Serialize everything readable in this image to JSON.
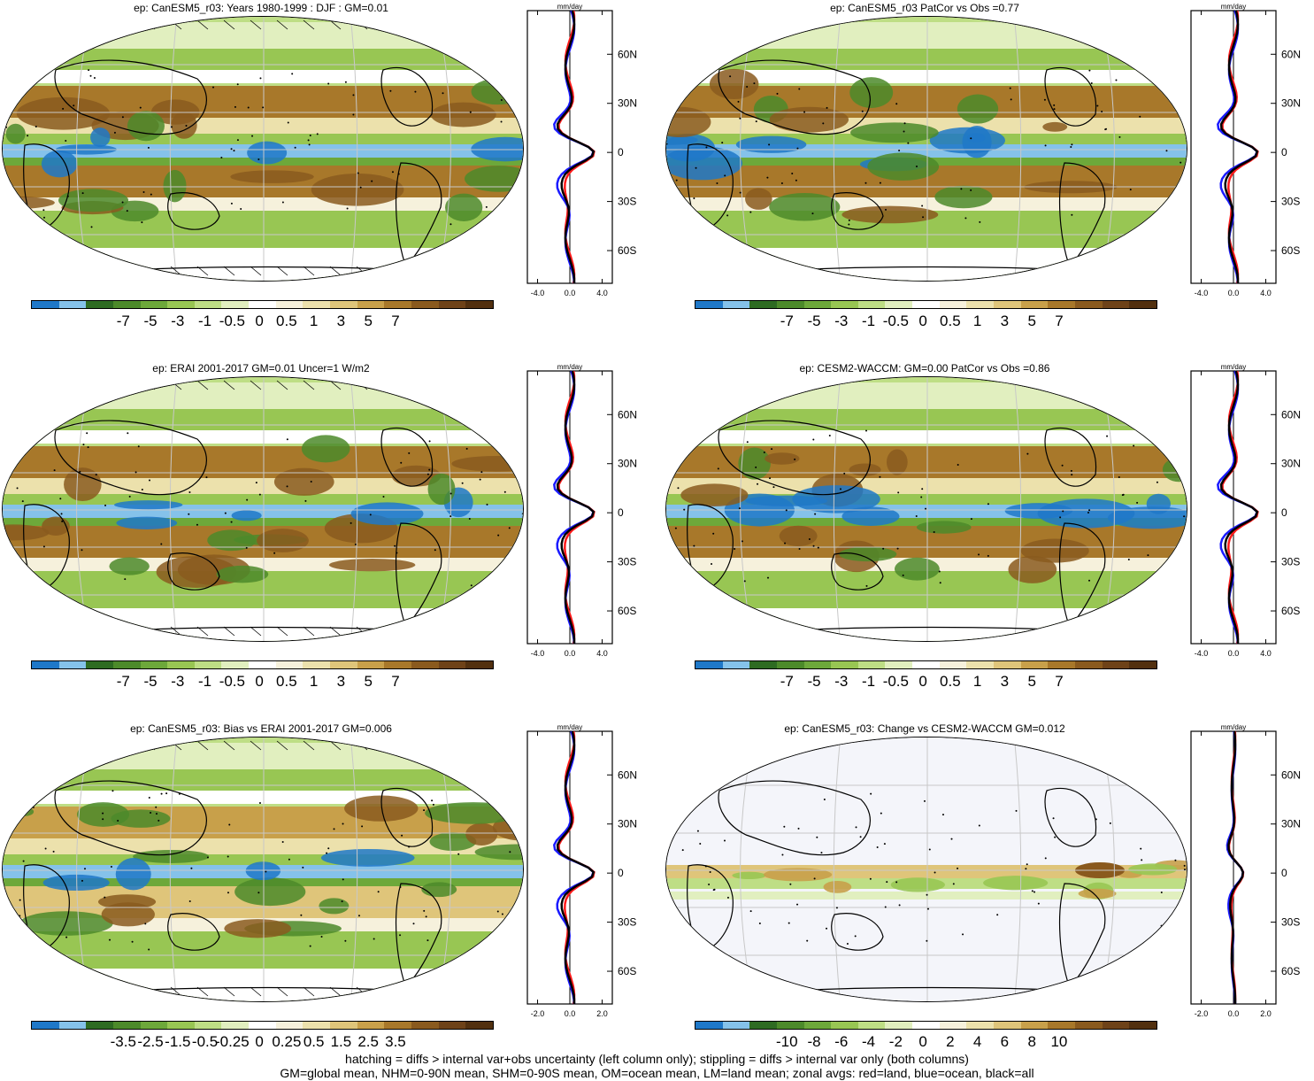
{
  "palette": [
    "#1f78c8",
    "#85c2ea",
    "#2e6b22",
    "#4c8a2a",
    "#6da83a",
    "#98c653",
    "#bede85",
    "#e1efbf",
    "#ffffff",
    "#f6f1dc",
    "#ece1ac",
    "#dfc57a",
    "#c8a04a",
    "#a8782a",
    "#8a5a1e",
    "#6e4218",
    "#52300f"
  ],
  "line_colors": {
    "land": "#ff1a1a",
    "ocean": "#1a1aff",
    "all": "#000000"
  },
  "lat_ticks": [
    "60N",
    "30N",
    "0",
    "30S",
    "60S"
  ],
  "zonal_unit": "mm/day",
  "panels": [
    {
      "id": "p1",
      "title": "ep: CanESM5_r03: Years 1980-1999 : DJF : GM=0.01",
      "cbar_labels": [
        "-7",
        "-5",
        "-3",
        "-1",
        "-0.5",
        "0",
        "0.5",
        "1",
        "3",
        "5",
        "7"
      ],
      "zonal_xticks": [
        "-4.0",
        "0.0",
        "4.0"
      ]
    },
    {
      "id": "p2",
      "title": "ep: CanESM5_r03 PatCor vs Obs =0.77",
      "cbar_labels": [
        "-7",
        "-5",
        "-3",
        "-1",
        "-0.5",
        "0",
        "0.5",
        "1",
        "3",
        "5",
        "7"
      ],
      "zonal_xticks": [
        "-4.0",
        "0.0",
        "4.0"
      ]
    },
    {
      "id": "p3",
      "title": "ep: ERAI 2001-2017 GM=0.01 Uncer=1 W/m2",
      "cbar_labels": [
        "-7",
        "-5",
        "-3",
        "-1",
        "-0.5",
        "0",
        "0.5",
        "1",
        "3",
        "5",
        "7"
      ],
      "zonal_xticks": [
        "-4.0",
        "0.0",
        "4.0"
      ]
    },
    {
      "id": "p4",
      "title": "ep: CESM2-WACCM: GM=0.00 PatCor vs Obs =0.86",
      "cbar_labels": [
        "-7",
        "-5",
        "-3",
        "-1",
        "-0.5",
        "0",
        "0.5",
        "1",
        "3",
        "5",
        "7"
      ],
      "zonal_xticks": [
        "-4.0",
        "0.0",
        "4.0"
      ]
    },
    {
      "id": "p5",
      "title": "ep: CanESM5_r03: Bias vs ERAI 2001-2017 GM=0.006",
      "cbar_labels": [
        "-3.5",
        "-2.5",
        "-1.5",
        "-0.5",
        "-0.25",
        "0",
        "0.25",
        "0.5",
        "1.5",
        "2.5",
        "3.5"
      ],
      "zonal_xticks": [
        "-2.0",
        "0.0",
        "2.0"
      ]
    },
    {
      "id": "p6",
      "title": "ep: CanESM5_r03: Change vs CESM2-WACCM GM=0.012",
      "cbar_labels": [
        "-10",
        "-8",
        "-6",
        "-4",
        "-2",
        "0",
        "2",
        "4",
        "6",
        "8",
        "10"
      ],
      "zonal_xticks": [
        "-2.0",
        "0.0",
        "2.0"
      ]
    }
  ],
  "footer": {
    "line1": "hatching = diffs > internal var+obs uncertainty (left column only); stippling = diffs > internal var only (both columns)",
    "line2": "GM=global mean, NHM=0-90N mean, SHM=0-90S mean, OM=ocean mean, LM=land mean; zonal avgs: red=land, blue=ocean, black=all"
  }
}
